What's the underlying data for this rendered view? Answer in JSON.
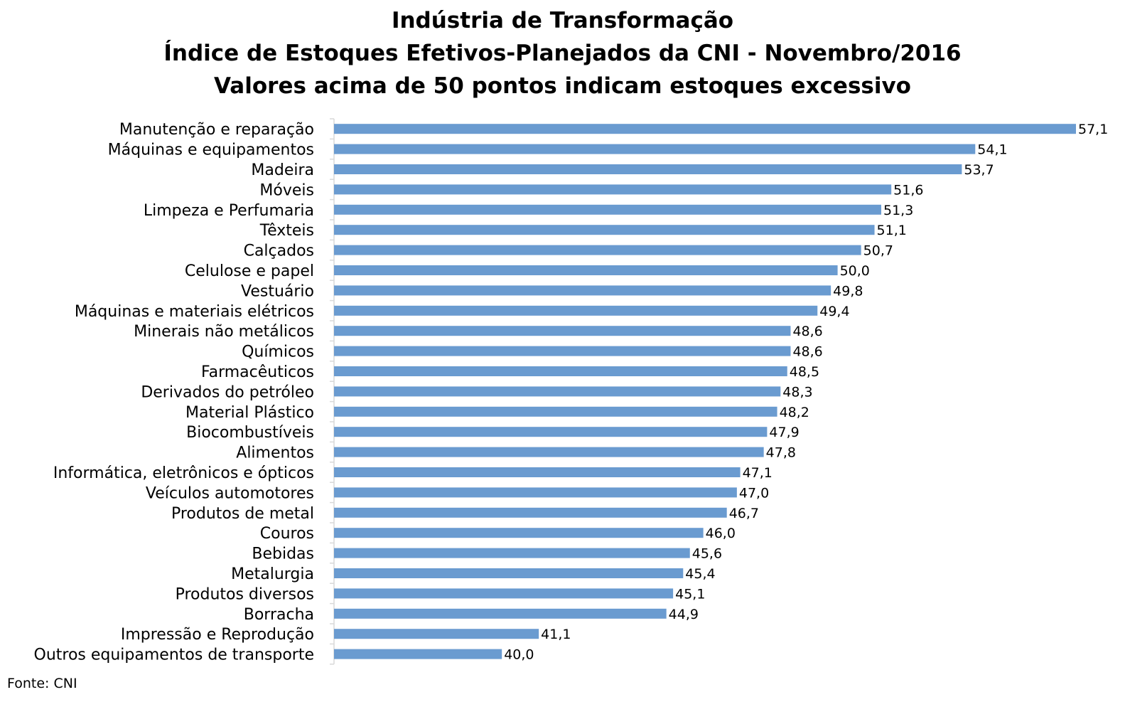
{
  "chart_data": {
    "type": "bar",
    "orientation": "horizontal",
    "title": "Indústria de Transformação",
    "subtitle": "Índice de Estoques Efetivos-Planejados da CNI - Novembro/2016",
    "subtitle2": "Valores acima de 50 pontos indicam estoques excessivo",
    "xlim": [
      35,
      57.1
    ],
    "bar_color": "#6a9bd0",
    "grid": false,
    "legend": "none",
    "categories": [
      "Manutenção e reparação",
      "Máquinas e equipamentos",
      "Madeira",
      "Móveis",
      "Limpeza e Perfumaria",
      "Têxteis",
      "Calçados",
      "Celulose e papel",
      "Vestuário",
      "Máquinas e materiais elétricos",
      "Minerais não metálicos",
      "Químicos",
      "Farmacêuticos",
      "Derivados do petróleo",
      "Material Plástico",
      "Biocombustíveis",
      "Alimentos",
      "Informática, eletrônicos e ópticos",
      "Veículos automotores",
      "Produtos de metal",
      "Couros",
      "Bebidas",
      "Metalurgia",
      "Produtos diversos",
      "Borracha",
      "Impressão e Reprodução",
      "Outros equipamentos de transporte"
    ],
    "values": [
      57.1,
      54.1,
      53.7,
      51.6,
      51.3,
      51.1,
      50.7,
      50.0,
      49.8,
      49.4,
      48.6,
      48.6,
      48.5,
      48.3,
      48.2,
      47.9,
      47.8,
      47.1,
      47.0,
      46.7,
      46.0,
      45.6,
      45.4,
      45.1,
      44.9,
      41.1,
      40.0
    ],
    "value_labels": [
      "57,1",
      "54,1",
      "53,7",
      "51,6",
      "51,3",
      "51,1",
      "50,7",
      "50,0",
      "49,8",
      "49,4",
      "48,6",
      "48,6",
      "48,5",
      "48,3",
      "48,2",
      "47,9",
      "47,8",
      "47,1",
      "47,0",
      "46,7",
      "46,0",
      "45,6",
      "45,4",
      "45,1",
      "44,9",
      "41,1",
      "40,0"
    ]
  },
  "source": "Fonte: CNI"
}
